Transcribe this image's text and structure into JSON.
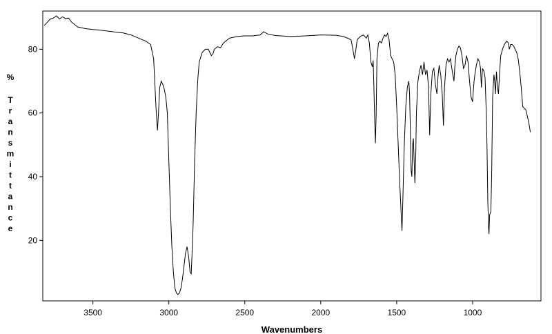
{
  "chart_data": {
    "type": "line",
    "title": "",
    "xlabel": "Wavenumbers",
    "ylabel": "% Transmittance",
    "xlim": [
      3830,
      550
    ],
    "ylim": [
      1,
      92
    ],
    "x_ticks": [
      3500,
      3000,
      2500,
      2000,
      1500,
      1000
    ],
    "y_ticks": [
      20,
      40,
      60,
      80
    ],
    "grid": false,
    "legend": "none",
    "line_color": "#000000",
    "series": [
      {
        "values": [
          [
            3820,
            87.5
          ],
          [
            3800,
            88.5
          ],
          [
            3780,
            89.5
          ],
          [
            3760,
            89.8
          ],
          [
            3740,
            90.5
          ],
          [
            3720,
            89.5
          ],
          [
            3700,
            90.2
          ],
          [
            3680,
            89.6
          ],
          [
            3660,
            89.8
          ],
          [
            3640,
            88.5
          ],
          [
            3620,
            87.8
          ],
          [
            3600,
            87.0
          ],
          [
            3550,
            86.5
          ],
          [
            3500,
            86.2
          ],
          [
            3450,
            86.0
          ],
          [
            3400,
            85.7
          ],
          [
            3350,
            85.4
          ],
          [
            3300,
            85.1
          ],
          [
            3250,
            84.5
          ],
          [
            3200,
            83.5
          ],
          [
            3150,
            82.5
          ],
          [
            3120,
            81.5
          ],
          [
            3100,
            77.0
          ],
          [
            3085,
            62.0
          ],
          [
            3075,
            54.5
          ],
          [
            3068,
            60.0
          ],
          [
            3060,
            68.0
          ],
          [
            3050,
            70.0
          ],
          [
            3040,
            69.0
          ],
          [
            3030,
            67.5
          ],
          [
            3020,
            65.0
          ],
          [
            3010,
            60.0
          ],
          [
            3000,
            45.0
          ],
          [
            2990,
            30.0
          ],
          [
            2980,
            18.0
          ],
          [
            2970,
            10.0
          ],
          [
            2960,
            5.0
          ],
          [
            2950,
            3.5
          ],
          [
            2940,
            3.0
          ],
          [
            2930,
            3.5
          ],
          [
            2920,
            5.0
          ],
          [
            2910,
            8.0
          ],
          [
            2900,
            12.0
          ],
          [
            2890,
            16.0
          ],
          [
            2880,
            18.0
          ],
          [
            2870,
            15.0
          ],
          [
            2860,
            10.0
          ],
          [
            2853,
            9.5
          ],
          [
            2848,
            15.0
          ],
          [
            2840,
            25.0
          ],
          [
            2830,
            45.0
          ],
          [
            2820,
            60.0
          ],
          [
            2810,
            70.0
          ],
          [
            2800,
            76.0
          ],
          [
            2780,
            79.0
          ],
          [
            2760,
            80.0
          ],
          [
            2740,
            80.0
          ],
          [
            2730,
            79.0
          ],
          [
            2720,
            78.0
          ],
          [
            2710,
            78.5
          ],
          [
            2700,
            80.0
          ],
          [
            2680,
            80.8
          ],
          [
            2660,
            80.5
          ],
          [
            2640,
            82.0
          ],
          [
            2600,
            83.5
          ],
          [
            2550,
            84.0
          ],
          [
            2500,
            84.2
          ],
          [
            2450,
            84.2
          ],
          [
            2400,
            84.5
          ],
          [
            2375,
            85.5
          ],
          [
            2350,
            84.8
          ],
          [
            2300,
            84.3
          ],
          [
            2200,
            84.0
          ],
          [
            2100,
            84.2
          ],
          [
            2000,
            84.5
          ],
          [
            1900,
            84.4
          ],
          [
            1850,
            84.0
          ],
          [
            1800,
            83.0
          ],
          [
            1790,
            80.5
          ],
          [
            1778,
            77.0
          ],
          [
            1770,
            79.5
          ],
          [
            1760,
            83.0
          ],
          [
            1740,
            84.0
          ],
          [
            1720,
            84.5
          ],
          [
            1700,
            83.5
          ],
          [
            1690,
            84.5
          ],
          [
            1680,
            82.0
          ],
          [
            1670,
            76.0
          ],
          [
            1660,
            74.5
          ],
          [
            1655,
            76.5
          ],
          [
            1650,
            68.0
          ],
          [
            1645,
            58.0
          ],
          [
            1640,
            50.5
          ],
          [
            1635,
            60.0
          ],
          [
            1630,
            77.0
          ],
          [
            1620,
            82.0
          ],
          [
            1610,
            82.5
          ],
          [
            1600,
            82.0
          ],
          [
            1590,
            83.5
          ],
          [
            1580,
            84.5
          ],
          [
            1570,
            84.0
          ],
          [
            1560,
            85.0
          ],
          [
            1550,
            83.0
          ],
          [
            1540,
            78.0
          ],
          [
            1530,
            77.0
          ],
          [
            1520,
            76.0
          ],
          [
            1510,
            72.0
          ],
          [
            1500,
            62.0
          ],
          [
            1490,
            50.0
          ],
          [
            1480,
            38.0
          ],
          [
            1470,
            28.0
          ],
          [
            1465,
            23.0
          ],
          [
            1458,
            35.0
          ],
          [
            1450,
            50.0
          ],
          [
            1440,
            62.0
          ],
          [
            1430,
            68.0
          ],
          [
            1420,
            70.0
          ],
          [
            1415,
            66.0
          ],
          [
            1410,
            55.0
          ],
          [
            1405,
            42.0
          ],
          [
            1400,
            40.0
          ],
          [
            1395,
            50.0
          ],
          [
            1390,
            52.0
          ],
          [
            1385,
            45.0
          ],
          [
            1380,
            38.0
          ],
          [
            1375,
            45.0
          ],
          [
            1370,
            60.0
          ],
          [
            1360,
            70.0
          ],
          [
            1350,
            73.0
          ],
          [
            1340,
            75.0
          ],
          [
            1330,
            72.0
          ],
          [
            1320,
            76.0
          ],
          [
            1310,
            72.0
          ],
          [
            1300,
            73.5
          ],
          [
            1290,
            68.0
          ],
          [
            1283,
            53.0
          ],
          [
            1275,
            66.0
          ],
          [
            1265,
            73.0
          ],
          [
            1255,
            74.0
          ],
          [
            1245,
            69.0
          ],
          [
            1235,
            66.0
          ],
          [
            1228,
            71.5
          ],
          [
            1220,
            75.0
          ],
          [
            1210,
            72.0
          ],
          [
            1200,
            66.0
          ],
          [
            1192,
            56.0
          ],
          [
            1185,
            68.0
          ],
          [
            1175,
            75.0
          ],
          [
            1165,
            77.0
          ],
          [
            1155,
            76.0
          ],
          [
            1145,
            77.0
          ],
          [
            1140,
            75.0
          ],
          [
            1130,
            72.0
          ],
          [
            1123,
            70.0
          ],
          [
            1118,
            74.0
          ],
          [
            1110,
            78.0
          ],
          [
            1100,
            80.0
          ],
          [
            1090,
            81.0
          ],
          [
            1080,
            80.5
          ],
          [
            1070,
            78.0
          ],
          [
            1060,
            74.0
          ],
          [
            1050,
            75.0
          ],
          [
            1040,
            78.0
          ],
          [
            1030,
            76.0
          ],
          [
            1020,
            70.0
          ],
          [
            1010,
            65.0
          ],
          [
            1000,
            63.5
          ],
          [
            995,
            67.0
          ],
          [
            990,
            70.0
          ],
          [
            985,
            72.0
          ],
          [
            975,
            75.0
          ],
          [
            965,
            77.0
          ],
          [
            955,
            76.0
          ],
          [
            948,
            74.0
          ],
          [
            942,
            68.0
          ],
          [
            935,
            74.0
          ],
          [
            925,
            73.0
          ],
          [
            918,
            71.0
          ],
          [
            910,
            60.0
          ],
          [
            905,
            48.0
          ],
          [
            900,
            32.0
          ],
          [
            895,
            24.0
          ],
          [
            892,
            22.0
          ],
          [
            888,
            28.0
          ],
          [
            880,
            29.0
          ],
          [
            875,
            40.0
          ],
          [
            868,
            65.0
          ],
          [
            860,
            72.0
          ],
          [
            855,
            70.0
          ],
          [
            850,
            66.0
          ],
          [
            843,
            73.0
          ],
          [
            836,
            68.0
          ],
          [
            830,
            66.0
          ],
          [
            823,
            72.0
          ],
          [
            815,
            78.0
          ],
          [
            800,
            80.5
          ],
          [
            785,
            82.0
          ],
          [
            775,
            82.5
          ],
          [
            765,
            82.0
          ],
          [
            758,
            80.0
          ],
          [
            750,
            81.5
          ],
          [
            740,
            81.5
          ],
          [
            730,
            81.0
          ],
          [
            720,
            80.0
          ],
          [
            710,
            79.0
          ],
          [
            700,
            77.0
          ],
          [
            690,
            73.0
          ],
          [
            680,
            68.0
          ],
          [
            670,
            62.0
          ],
          [
            660,
            61.5
          ],
          [
            650,
            61.0
          ],
          [
            640,
            59.0
          ],
          [
            630,
            57.0
          ],
          [
            620,
            54.0
          ]
        ]
      }
    ]
  }
}
